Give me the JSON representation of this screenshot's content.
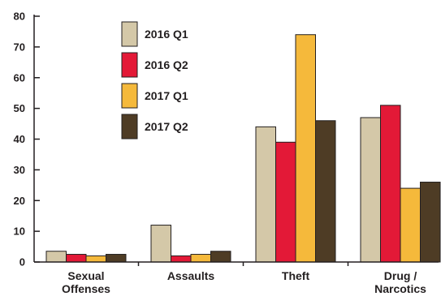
{
  "chart_data": {
    "type": "bar",
    "title": "",
    "xlabel": "",
    "ylabel": "",
    "ylim": [
      0,
      80
    ],
    "yticks": [
      0,
      10,
      20,
      30,
      40,
      50,
      60,
      70,
      80
    ],
    "categories": [
      [
        "Sexual",
        "Offenses"
      ],
      [
        "Assaults"
      ],
      [
        "Theft"
      ],
      [
        "Drug /",
        "Narcotics"
      ]
    ],
    "series": [
      {
        "name": "2016 Q1",
        "color": "#d4c8a8",
        "values": [
          3.5,
          12,
          44,
          47
        ]
      },
      {
        "name": "2016 Q2",
        "color": "#e31937",
        "values": [
          2.5,
          2,
          39,
          51
        ]
      },
      {
        "name": "2017 Q1",
        "color": "#f5b93b",
        "values": [
          2,
          2.5,
          74,
          24
        ]
      },
      {
        "name": "2017 Q2",
        "color": "#4e3c25",
        "values": [
          2.5,
          3.5,
          46,
          26
        ]
      }
    ],
    "legend": {
      "position": "top-left"
    },
    "grid": false,
    "colors": {
      "axis": "#231f20",
      "bar_stroke": "#231f20"
    }
  }
}
